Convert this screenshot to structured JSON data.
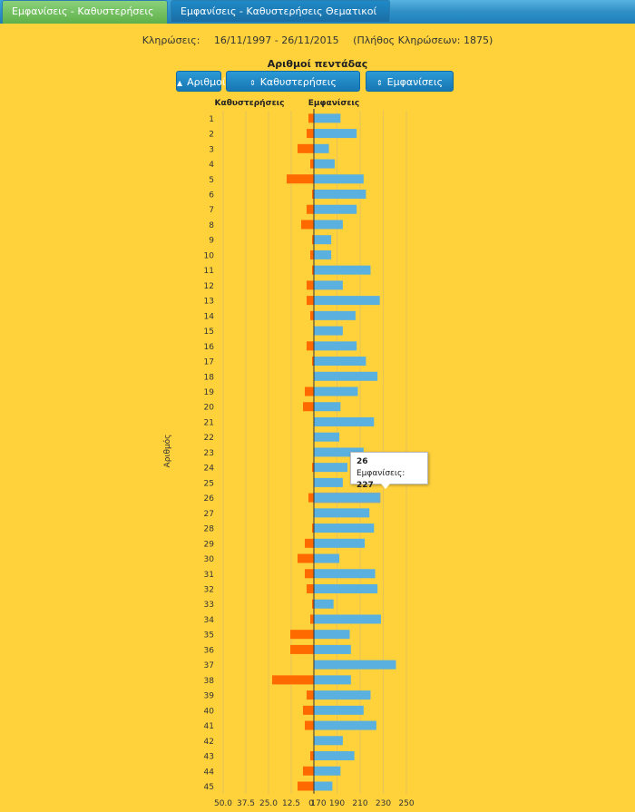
{
  "tabs": [
    {
      "label": "Εμφανίσεις - Καθυστερήσεις"
    },
    {
      "label": "Εμφανίσεις - Καθυστερήσεις Θεματικοί"
    }
  ],
  "draws": {
    "label": "Κληρώσεις:",
    "range": "16/11/1997 - 26/11/2015",
    "count_text": "(Πλήθος Κληρώσεων: 1875)"
  },
  "buttons": {
    "numbers": "Αριθμοί",
    "delays": "Καθυστερήσεις",
    "appearances": "Εμφανίσεις"
  },
  "tooltip": {
    "number": "26",
    "label": "Εμφανίσεις:",
    "value": "227"
  },
  "colors": {
    "appearances": "#5ab0df",
    "delays": "#ff6a00",
    "background": "#ffd23c"
  },
  "chart_data": {
    "type": "bar",
    "title": "Αριθμοί πεντάδας",
    "ylabel": "Αριθμός",
    "series_labels": {
      "delays": "Καθυστερήσεις",
      "appearances": "Εμφανίσεις"
    },
    "categories": [
      "1",
      "2",
      "3",
      "4",
      "5",
      "6",
      "7",
      "8",
      "9",
      "10",
      "11",
      "12",
      "13",
      "14",
      "15",
      "16",
      "17",
      "18",
      "19",
      "20",
      "21",
      "22",
      "23",
      "24",
      "25",
      "26",
      "27",
      "28",
      "29",
      "30",
      "31",
      "32",
      "33",
      "34",
      "35",
      "36",
      "37",
      "38",
      "39",
      "40",
      "41",
      "42",
      "43",
      "44",
      "45"
    ],
    "appearances": [
      193,
      207,
      183,
      188,
      213,
      215,
      207,
      195,
      185,
      185,
      219,
      195,
      227,
      206,
      195,
      207,
      215,
      225,
      208,
      193,
      222,
      192,
      213,
      199,
      195,
      227,
      218,
      222,
      214,
      192,
      223,
      225,
      187,
      228,
      201,
      202,
      241,
      202,
      219,
      213,
      224,
      195,
      205,
      193,
      186
    ],
    "delays": [
      3,
      4,
      9,
      2,
      15,
      1,
      4,
      7,
      1,
      2,
      1,
      4,
      4,
      2,
      0,
      4,
      1,
      0,
      5,
      6,
      0,
      0,
      0,
      1,
      0,
      3,
      0,
      1,
      5,
      9,
      5,
      4,
      1,
      2,
      13,
      13,
      0,
      23,
      4,
      6,
      5,
      0,
      2,
      6,
      9
    ],
    "delay_axis": {
      "ticks": [
        "50.0",
        "37.5",
        "25.0",
        "12.5",
        "0"
      ],
      "range": [
        0,
        50
      ]
    },
    "appearance_axis": {
      "ticks": [
        "170",
        "190",
        "210",
        "230",
        "250"
      ],
      "range": [
        170,
        250
      ]
    }
  }
}
